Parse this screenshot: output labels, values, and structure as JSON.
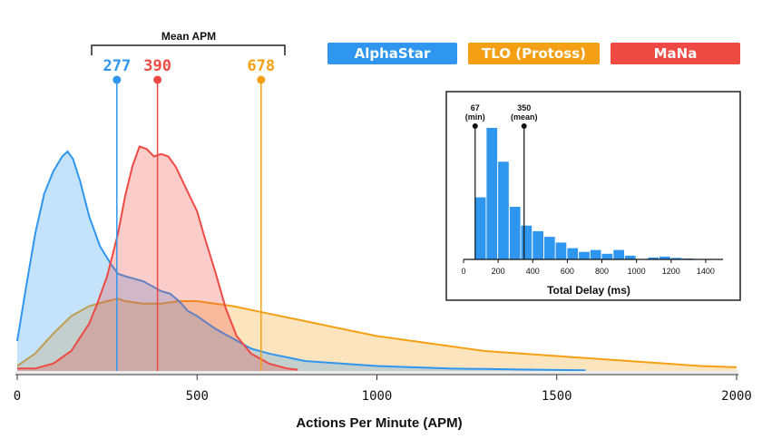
{
  "colors": {
    "alphastar": "#2f96f0",
    "tlo": "#f5a014",
    "mana": "#ee4a44",
    "axis": "#222222"
  },
  "legend": [
    {
      "label": "AlphaStar",
      "color": "#2f96f0"
    },
    {
      "label": "TLO (Protoss)",
      "color": "#f5a014"
    },
    {
      "label": "MaNa",
      "color": "#ee4a44"
    }
  ],
  "chart_data": [
    {
      "type": "area",
      "title": "",
      "xlabel": "Actions Per Minute (APM)",
      "ylabel": "",
      "xlim": [
        0,
        2000
      ],
      "x_ticks": [
        "0",
        "500",
        "1000",
        "1500",
        "2000"
      ],
      "mean_bracket_label": "Mean APM",
      "series": [
        {
          "name": "AlphaStar",
          "x": [
            0,
            25,
            50,
            75,
            100,
            125,
            140,
            155,
            175,
            200,
            230,
            260,
            280,
            300,
            325,
            350,
            375,
            400,
            425,
            450,
            475,
            500,
            550,
            600,
            650,
            700,
            800,
            900,
            1000,
            1100,
            1200,
            1300,
            1400,
            1500,
            1580
          ],
          "y": [
            0.12,
            0.34,
            0.55,
            0.71,
            0.8,
            0.86,
            0.88,
            0.85,
            0.76,
            0.62,
            0.5,
            0.43,
            0.39,
            0.38,
            0.37,
            0.36,
            0.34,
            0.32,
            0.31,
            0.28,
            0.24,
            0.22,
            0.17,
            0.13,
            0.09,
            0.07,
            0.04,
            0.03,
            0.02,
            0.015,
            0.01,
            0.008,
            0.006,
            0.004,
            0.003
          ]
        },
        {
          "name": "TLO (Protoss)",
          "x": [
            0,
            50,
            100,
            150,
            200,
            250,
            280,
            300,
            350,
            400,
            450,
            500,
            550,
            600,
            700,
            800,
            900,
            1000,
            1100,
            1200,
            1300,
            1400,
            1500,
            1600,
            1700,
            1800,
            1900,
            2000
          ],
          "y": [
            0.02,
            0.07,
            0.15,
            0.22,
            0.26,
            0.28,
            0.29,
            0.28,
            0.27,
            0.27,
            0.28,
            0.28,
            0.27,
            0.26,
            0.23,
            0.2,
            0.17,
            0.14,
            0.12,
            0.1,
            0.08,
            0.07,
            0.06,
            0.05,
            0.04,
            0.03,
            0.02,
            0.015
          ]
        },
        {
          "name": "MaNa",
          "x": [
            0,
            50,
            100,
            150,
            200,
            220,
            250,
            280,
            300,
            320,
            340,
            360,
            380,
            400,
            420,
            440,
            460,
            480,
            500,
            520,
            550,
            580,
            610,
            650,
            700,
            750,
            780
          ],
          "y": [
            0.01,
            0.01,
            0.03,
            0.08,
            0.19,
            0.26,
            0.38,
            0.55,
            0.7,
            0.82,
            0.9,
            0.89,
            0.86,
            0.87,
            0.86,
            0.82,
            0.76,
            0.7,
            0.64,
            0.54,
            0.4,
            0.25,
            0.14,
            0.07,
            0.03,
            0.01,
            0.005
          ]
        }
      ],
      "mean_markers": [
        {
          "series": "AlphaStar",
          "value": 277,
          "label": "277"
        },
        {
          "series": "MaNa",
          "value": 390,
          "label": "390"
        },
        {
          "series": "TLO (Protoss)",
          "value": 678,
          "label": "678"
        }
      ]
    },
    {
      "type": "bar",
      "title": "",
      "xlabel": "Total Delay (ms)",
      "ylabel": "",
      "xlim": [
        0,
        1500
      ],
      "x_ticks": [
        "0",
        "200",
        "400",
        "600",
        "800",
        "1000",
        "1200",
        "1400"
      ],
      "bin_width": 66.7,
      "bin_starts": [
        67,
        133,
        200,
        267,
        333,
        400,
        467,
        533,
        600,
        667,
        733,
        800,
        867,
        933,
        1067,
        1133,
        1200,
        1267
      ],
      "values": [
        0.33,
        0.7,
        0.52,
        0.28,
        0.18,
        0.15,
        0.12,
        0.09,
        0.06,
        0.04,
        0.05,
        0.03,
        0.05,
        0.02,
        0.01,
        0.015,
        0.008,
        0.005
      ],
      "markers": [
        {
          "value": 67,
          "label": "67",
          "sublabel": "(min)"
        },
        {
          "value": 350,
          "label": "350",
          "sublabel": "(mean)"
        }
      ]
    }
  ]
}
